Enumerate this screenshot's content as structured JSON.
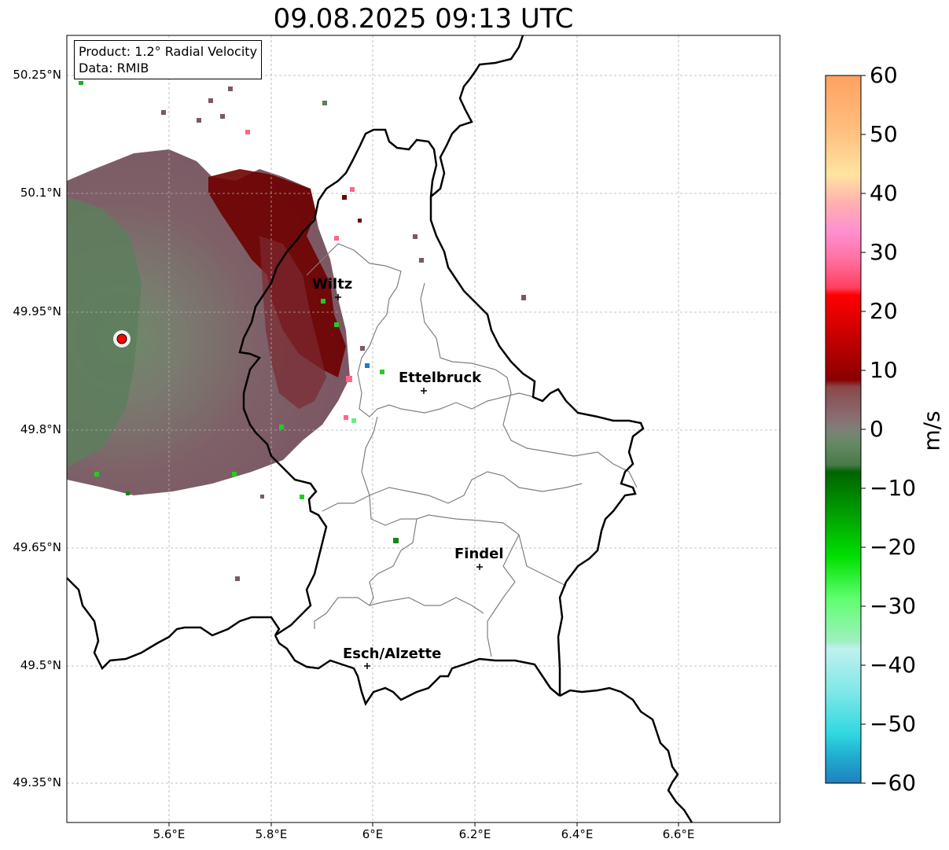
{
  "map": {
    "title": "09.08.2025 09:13 UTC",
    "info_box": {
      "line1": "Product: 1.2° Radial Velocity",
      "line2": "Data: RMIB"
    },
    "latitude_labels": [
      "50.25°N",
      "50.1°N",
      "49.95°N",
      "49.8°N",
      "49.65°N",
      "49.5°N",
      "49.35°N"
    ],
    "longitude_labels": [
      "5.6°E",
      "5.8°E",
      "6°E",
      "6.2°E",
      "6.4°E",
      "6.6°E"
    ],
    "cities": [
      {
        "name": "Wiltz"
      },
      {
        "name": "Ettelbruck"
      },
      {
        "name": "Findel"
      },
      {
        "name": "Esch/Alzette"
      }
    ],
    "radar_site_color": "#ff0000",
    "colors": {
      "receding_dark": "#6e0000",
      "near_zero_brown": "#7a5a60",
      "approaching_green": "#5d7e5d",
      "bright_green": "#22cc22",
      "pink": "#ff6688"
    }
  },
  "colorbar": {
    "label": "m/s",
    "ticks": [
      "60",
      "50",
      "40",
      "30",
      "20",
      "10",
      "0",
      "−10",
      "−20",
      "−30",
      "−40",
      "−50",
      "−60"
    ],
    "range": [
      -60,
      60
    ]
  }
}
